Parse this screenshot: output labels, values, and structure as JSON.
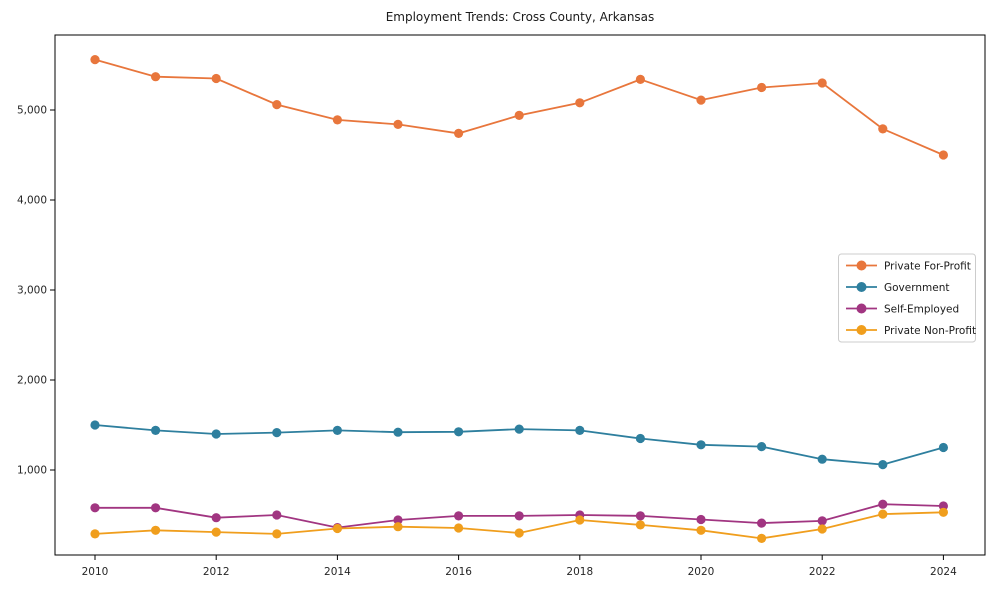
{
  "figure": {
    "title": "Employment Trends: Cross County, Arkansas"
  },
  "axes": {
    "x_tick_labels": [
      "2010",
      "2012",
      "2014",
      "2016",
      "2018",
      "2020",
      "2022",
      "2024"
    ],
    "y_tick_labels": [
      "1,000",
      "2,000",
      "3,000",
      "4,000",
      "5,000"
    ],
    "y_tick_values": [
      1000,
      2000,
      3000,
      4000,
      5000
    ],
    "x_tick_values": [
      2010,
      2012,
      2014,
      2016,
      2018,
      2020,
      2022,
      2024
    ],
    "spine_color": "#000000",
    "tick_text_color": "#262626"
  },
  "chart_data": {
    "type": "line",
    "title": "Employment Trends: Cross County, Arkansas",
    "xlabel": "",
    "ylabel": "",
    "x": [
      2010,
      2011,
      2012,
      2013,
      2014,
      2015,
      2016,
      2017,
      2018,
      2019,
      2020,
      2021,
      2022,
      2023,
      2024
    ],
    "series": [
      {
        "name": "Private For-Profit",
        "color": "#e8763c",
        "values": [
          5560,
          5370,
          5350,
          5060,
          4890,
          4840,
          4740,
          4940,
          5080,
          5340,
          5110,
          5250,
          5300,
          4790,
          4500
        ]
      },
      {
        "name": "Government",
        "color": "#2e7f9e",
        "values": [
          1500,
          1440,
          1400,
          1415,
          1440,
          1420,
          1425,
          1455,
          1440,
          1350,
          1280,
          1260,
          1120,
          1060,
          1250
        ]
      },
      {
        "name": "Self-Employed",
        "color": "#a13581",
        "values": [
          580,
          580,
          470,
          500,
          360,
          445,
          490,
          490,
          500,
          490,
          450,
          410,
          435,
          620,
          600
        ]
      },
      {
        "name": "Private Non-Profit",
        "color": "#f09e1d",
        "values": [
          290,
          330,
          310,
          290,
          350,
          370,
          355,
          300,
          445,
          390,
          330,
          240,
          345,
          510,
          530
        ]
      }
    ],
    "xlim": [
      2009.35,
      2024.7
    ],
    "ylim": [
      55,
      5835
    ],
    "grid": false,
    "legend_position": "center right",
    "marker": "circle",
    "legend_border_color": "#cccccc"
  }
}
